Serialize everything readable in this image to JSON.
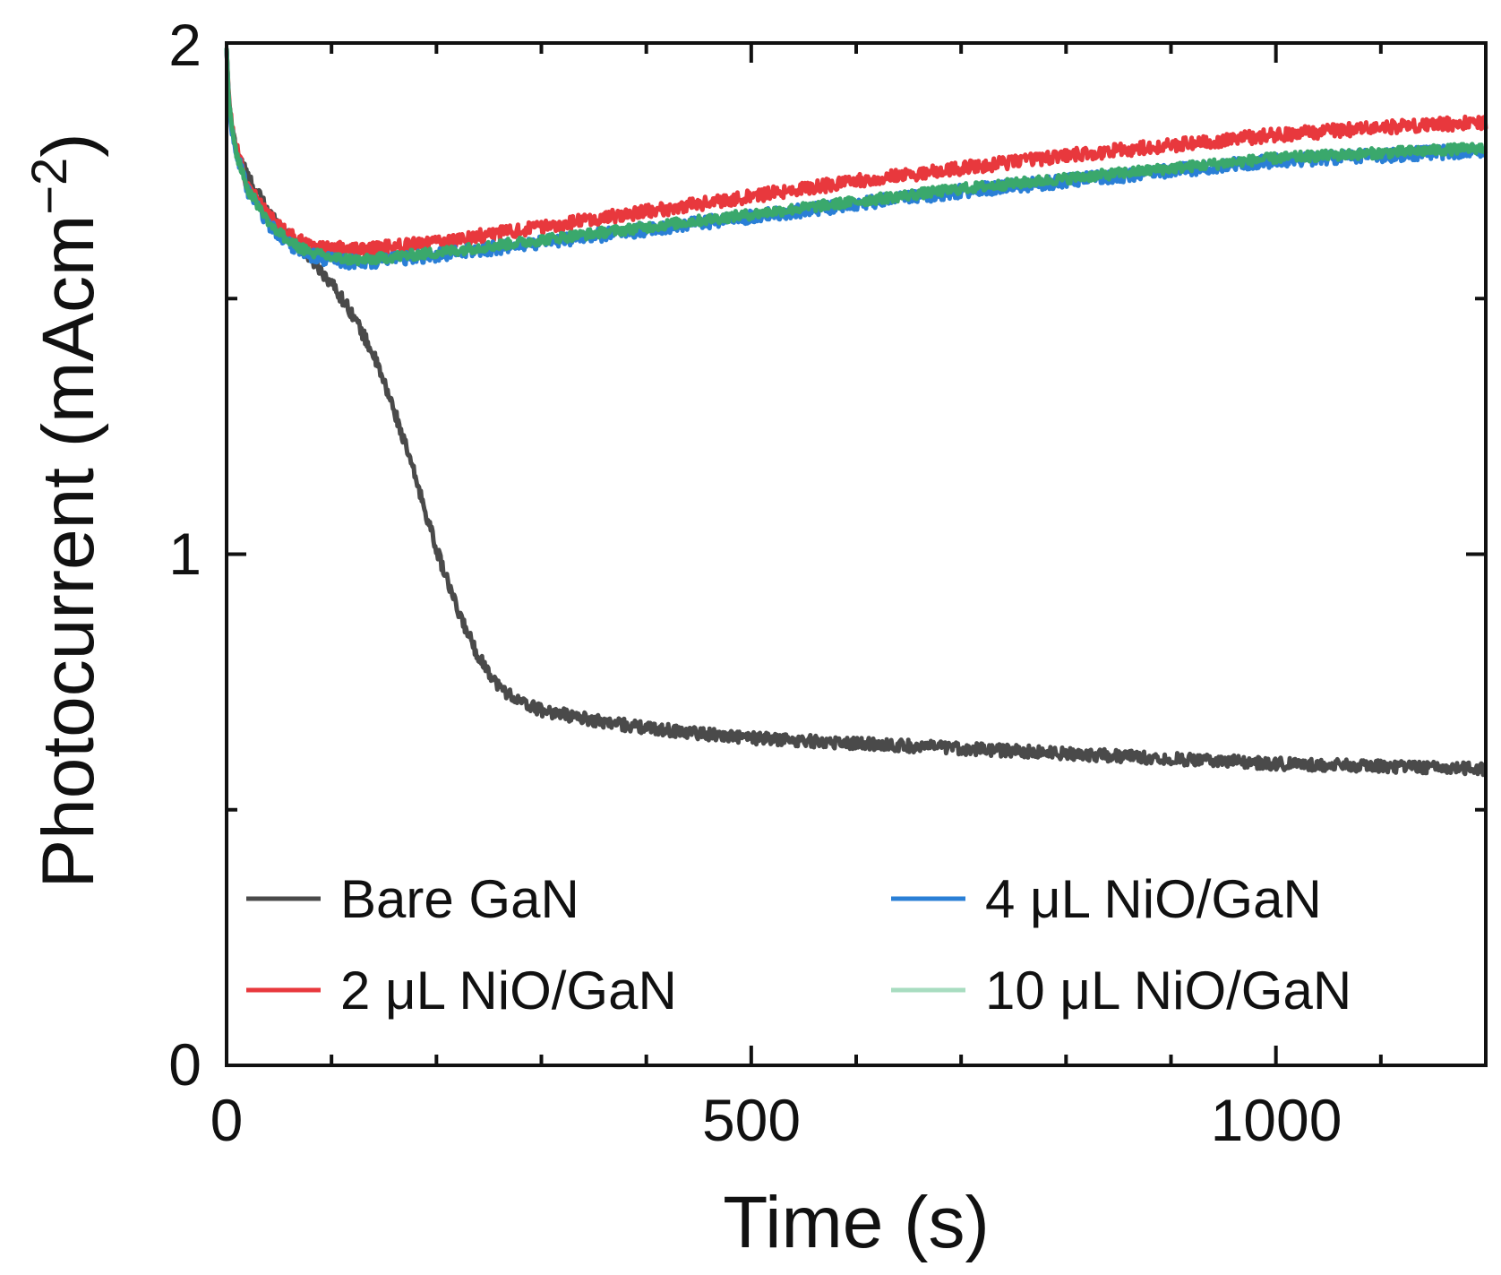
{
  "chart_data": {
    "type": "line",
    "title": "",
    "xlabel": "Time (s)",
    "ylabel_main": "Photocurrent (mAcm",
    "ylabel_sup": "−2",
    "ylabel_close": ")",
    "xlim": [
      0,
      1200
    ],
    "ylim": [
      0,
      2
    ],
    "x_ticks": [
      0,
      500,
      1000
    ],
    "x_tick_labels": [
      "0",
      "500",
      "1000"
    ],
    "x_minor_ticks": [
      100,
      200,
      300,
      400,
      600,
      700,
      800,
      900,
      1100
    ],
    "y_ticks": [
      0,
      1,
      2
    ],
    "y_tick_labels": [
      "0",
      "1",
      "2"
    ],
    "y_minor_ticks": [
      0.5,
      1.5
    ],
    "grid": false,
    "legend_position": "bottom",
    "series": [
      {
        "name": "Bare GaN",
        "color": "#4a4a4a",
        "noise": 0.012,
        "x": [
          0,
          2,
          5,
          10,
          20,
          40,
          60,
          80,
          100,
          120,
          140,
          160,
          180,
          200,
          220,
          240,
          260,
          280,
          300,
          350,
          400,
          450,
          500,
          600,
          700,
          800,
          900,
          1000,
          1100,
          1200
        ],
        "y": [
          1.99,
          1.89,
          1.83,
          1.79,
          1.74,
          1.67,
          1.62,
          1.58,
          1.53,
          1.47,
          1.39,
          1.28,
          1.15,
          1.01,
          0.89,
          0.8,
          0.74,
          0.71,
          0.695,
          0.675,
          0.66,
          0.65,
          0.64,
          0.63,
          0.62,
          0.61,
          0.6,
          0.59,
          0.585,
          0.58
        ]
      },
      {
        "name": "2 μL NiO/GaN",
        "color": "#e8383d",
        "noise": 0.013,
        "x": [
          0,
          2,
          5,
          10,
          20,
          40,
          60,
          80,
          100,
          130,
          150,
          200,
          300,
          400,
          500,
          600,
          700,
          800,
          900,
          1000,
          1100,
          1200
        ],
        "y": [
          1.99,
          1.9,
          1.84,
          1.79,
          1.72,
          1.66,
          1.625,
          1.605,
          1.6,
          1.595,
          1.6,
          1.61,
          1.64,
          1.67,
          1.7,
          1.73,
          1.755,
          1.78,
          1.8,
          1.82,
          1.835,
          1.845
        ]
      },
      {
        "name": "4 μL NiO/GaN",
        "color": "#2a7fd6",
        "noise": 0.013,
        "x": [
          0,
          2,
          5,
          10,
          20,
          40,
          60,
          80,
          100,
          130,
          150,
          200,
          300,
          400,
          500,
          600,
          700,
          800,
          900,
          1000,
          1100,
          1200
        ],
        "y": [
          1.99,
          1.89,
          1.83,
          1.78,
          1.71,
          1.645,
          1.605,
          1.585,
          1.575,
          1.57,
          1.575,
          1.585,
          1.61,
          1.635,
          1.66,
          1.685,
          1.71,
          1.73,
          1.75,
          1.77,
          1.78,
          1.79
        ]
      },
      {
        "name": "10 μL NiO/GaN",
        "color": "#3aa86c",
        "noise": 0.01,
        "x": [
          0,
          2,
          5,
          10,
          20,
          40,
          60,
          80,
          100,
          130,
          150,
          200,
          300,
          400,
          500,
          600,
          700,
          800,
          900,
          1000,
          1100,
          1200
        ],
        "y": [
          1.99,
          1.89,
          1.83,
          1.78,
          1.715,
          1.65,
          1.61,
          1.59,
          1.58,
          1.575,
          1.58,
          1.59,
          1.615,
          1.64,
          1.665,
          1.69,
          1.715,
          1.735,
          1.755,
          1.775,
          1.785,
          1.795
        ]
      }
    ],
    "legend_line_colors": [
      "#4a4a4a",
      "#e8383d",
      "#2a7fd6",
      "#a8dcc0"
    ]
  }
}
